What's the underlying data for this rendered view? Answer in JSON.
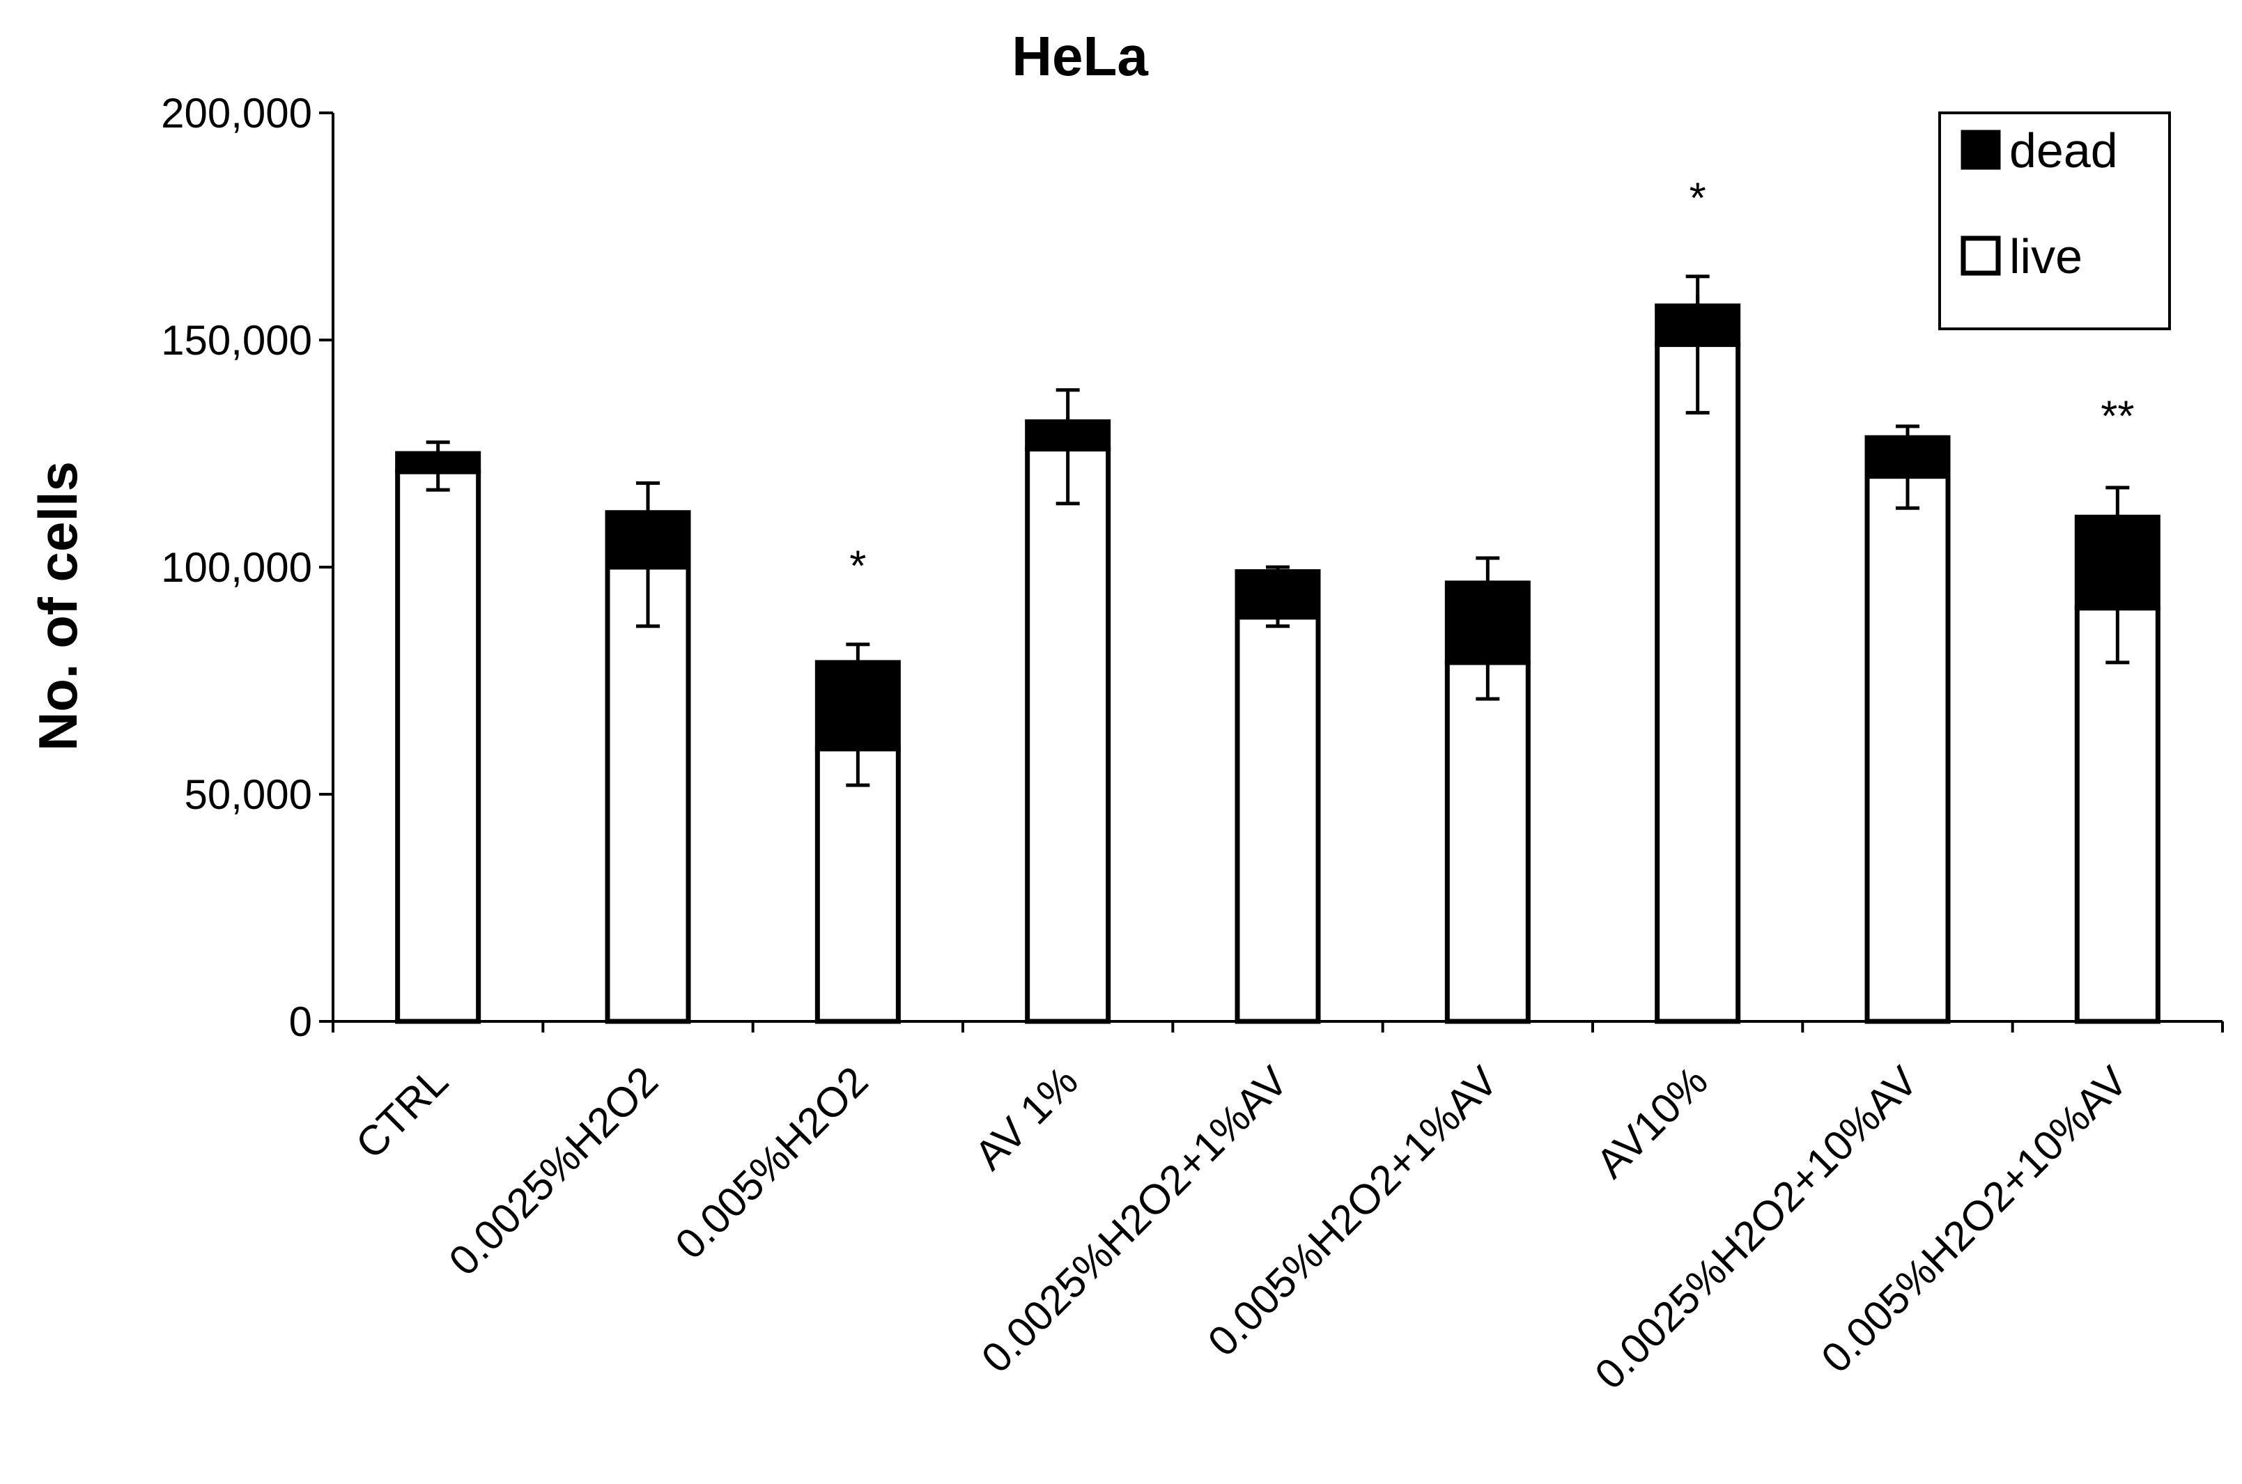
{
  "chart_data": {
    "type": "bar",
    "stacked": true,
    "title": "HeLa",
    "xlabel": "",
    "ylabel": "No. of cells",
    "ylim": [
      0,
      200000
    ],
    "yticks": [
      0,
      50000,
      100000,
      150000,
      200000
    ],
    "ytick_labels": [
      "0",
      "50,000",
      "100,000",
      "150,000",
      "200,000"
    ],
    "categories": [
      "CTRL",
      "0.0025%H2O2",
      "0.005%H2O2",
      "AV 1%",
      "0.0025%H2O2+1%AV",
      "0.005%H2O2+1%AV",
      "AV10%",
      "0.0025%H2O2+10%AV",
      "0.005%H2O2+10%AV"
    ],
    "series": [
      {
        "name": "live",
        "color": "#ffffff",
        "values": [
          121000,
          100000,
          60000,
          126000,
          89000,
          79000,
          149000,
          120000,
          91000
        ]
      },
      {
        "name": "dead",
        "color": "#000000",
        "values": [
          4000,
          12000,
          19000,
          6000,
          10000,
          17500,
          8500,
          8500,
          20000
        ]
      }
    ],
    "error_bars": [
      {
        "series": "live",
        "upper": [
          125000,
          114000,
          63000,
          133000,
          91000,
          79000,
          160000,
          122000,
          93000
        ],
        "lower": [
          117000,
          87000,
          52000,
          114000,
          87000,
          71000,
          134000,
          113000,
          79000
        ]
      },
      {
        "series": "total",
        "upper": [
          127500,
          118500,
          83000,
          139000,
          100000,
          102000,
          164000,
          131000,
          117500
        ]
      }
    ],
    "annotations": [
      {
        "category": "0.005%H2O2",
        "text": "*",
        "y": 97000
      },
      {
        "category": "AV10%",
        "text": "*",
        "y": 178000
      },
      {
        "category": "0.005%H2O2+10%AV",
        "text": "**",
        "y": 130000
      }
    ],
    "legend": {
      "position": "top-right",
      "entries": [
        "dead",
        "live"
      ]
    },
    "grid": false
  }
}
